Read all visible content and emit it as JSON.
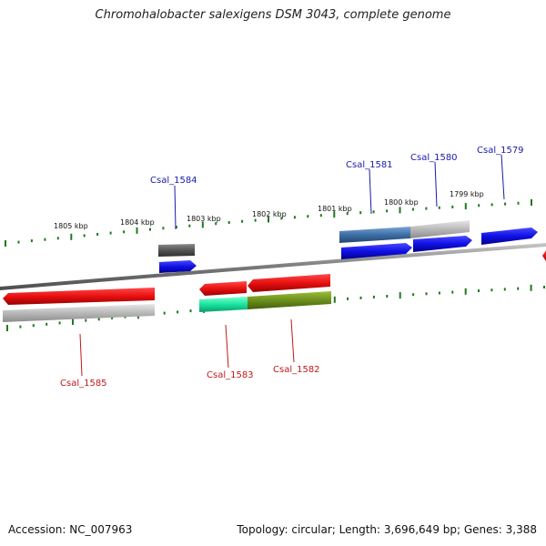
{
  "title": "Chromohalobacter salexigens DSM 3043, complete genome",
  "footer": {
    "accession": "Accession: NC_007963",
    "summary": "Topology: circular; Length: 3,696,649 bp; Genes: 3,388"
  },
  "colors": {
    "forward_gene": "#1a1aee",
    "reverse_gene": "#e01010",
    "backbone": "#8a8a8a",
    "tick": "#1f7a1f",
    "label_forward": "#1a1aa8",
    "label_reverse": "#c01818"
  },
  "scale": {
    "unit": "kbp",
    "labels": [
      "1805 kbp",
      "1804 kbp",
      "1803 kbp",
      "1802 kbp",
      "1801 kbp",
      "1800 kbp",
      "1799 kbp"
    ]
  },
  "genes": [
    {
      "name": "Csal_1579",
      "strand": "forward"
    },
    {
      "name": "Csal_1580",
      "strand": "forward"
    },
    {
      "name": "Csal_1581",
      "strand": "forward"
    },
    {
      "name": "Csal_1584",
      "strand": "forward"
    },
    {
      "name": "Csal_1585",
      "strand": "reverse"
    },
    {
      "name": "Csal_1583",
      "strand": "reverse"
    },
    {
      "name": "Csal_1582",
      "strand": "reverse"
    }
  ]
}
